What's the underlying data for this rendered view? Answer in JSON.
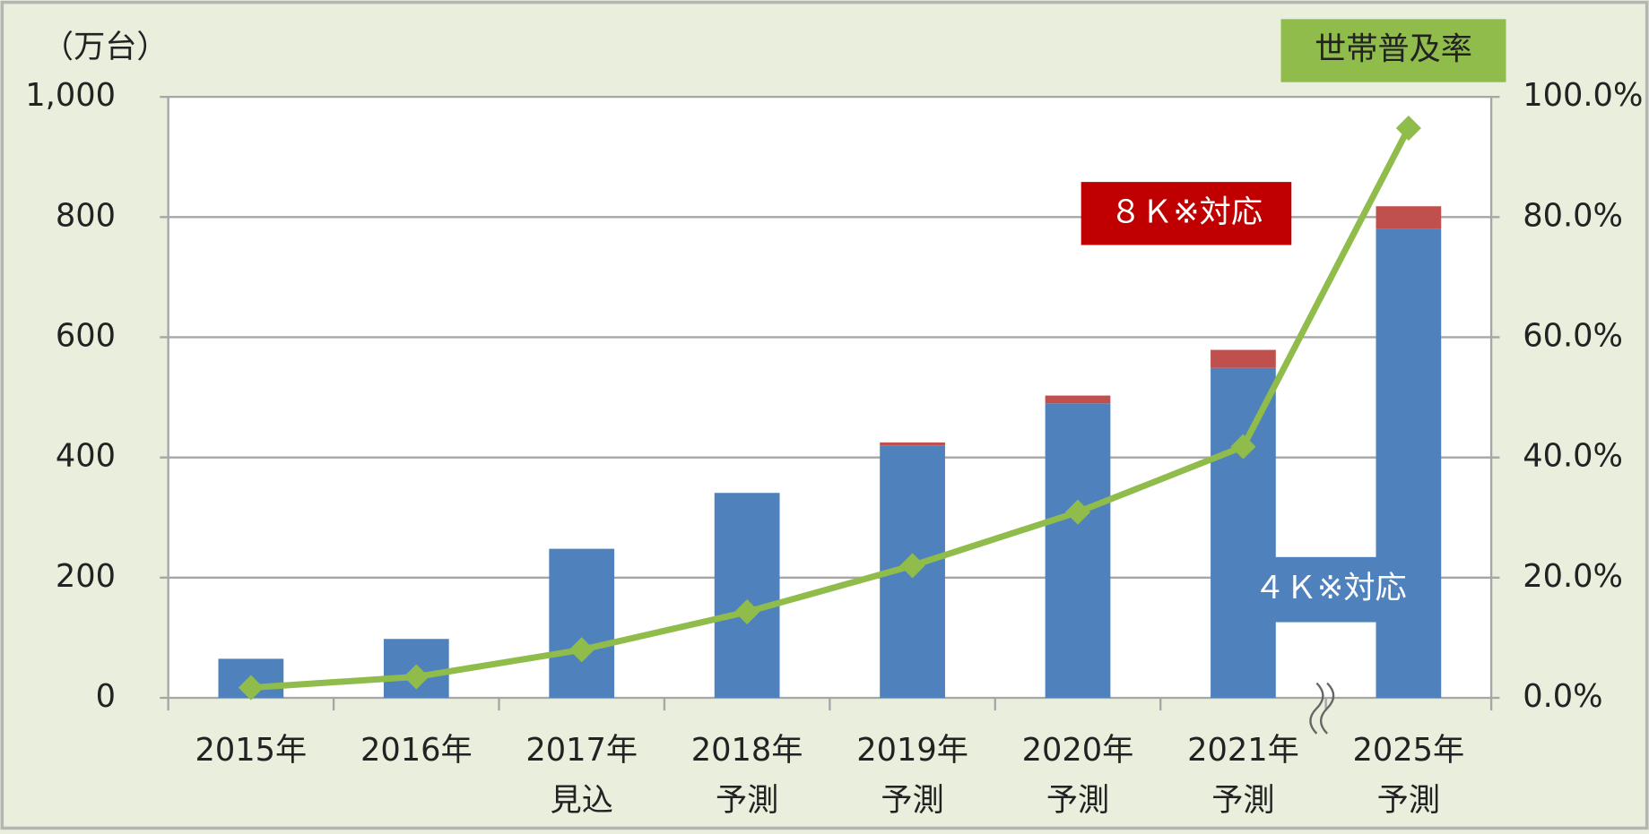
{
  "chart_data": {
    "type": "bar",
    "y_unit_label": "（万台）",
    "y2_label": "世帯普及率",
    "categories": [
      [
        "2015年"
      ],
      [
        "2016年"
      ],
      [
        "2017年",
        "見込"
      ],
      [
        "2018年",
        "予測"
      ],
      [
        "2019年",
        "予測"
      ],
      [
        "2020年",
        "予測"
      ],
      [
        "2021年",
        "予測"
      ],
      [
        "2025年",
        "予測"
      ]
    ],
    "series": [
      {
        "name": "４Ｋ※対応",
        "color": "#4f81bd",
        "values": [
          65,
          98,
          248,
          341,
          420,
          490,
          549,
          780
        ]
      },
      {
        "name": "８Ｋ※対応",
        "color": "#c0504d",
        "values": [
          0,
          0,
          0,
          0,
          5,
          13,
          30,
          38
        ]
      },
      {
        "name": "世帯普及率",
        "type": "line",
        "axis": "y2",
        "color": "#8fbc4a",
        "values": [
          1.7,
          3.5,
          8.0,
          14.3,
          22.0,
          30.9,
          41.8,
          94.8
        ]
      }
    ],
    "ylim": [
      0,
      1000
    ],
    "yticks": [
      0,
      200,
      400,
      600,
      800,
      {
        "value": 1000,
        "label": "1,000"
      }
    ],
    "y2lim": [
      0,
      100
    ],
    "y2ticks": [
      {
        "value": 0,
        "label": "0.0%"
      },
      {
        "value": 20,
        "label": "20.0%"
      },
      {
        "value": 40,
        "label": "40.0%"
      },
      {
        "value": 60,
        "label": "60.0%"
      },
      {
        "value": 80,
        "label": "80.0%"
      },
      {
        "value": 100,
        "label": "100.0%"
      }
    ],
    "grid": true
  }
}
